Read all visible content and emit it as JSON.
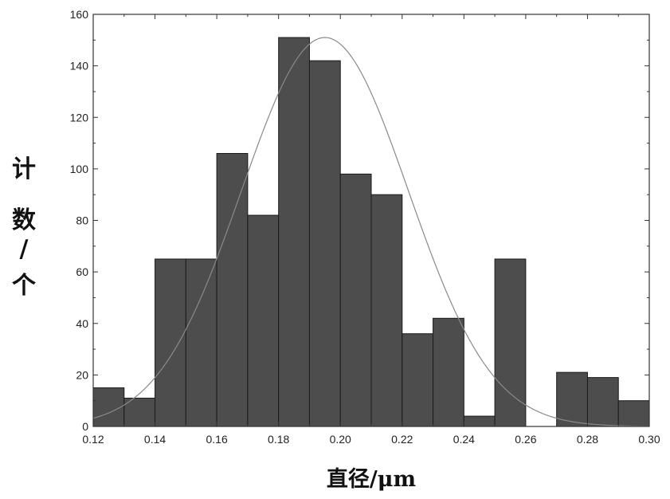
{
  "chart_data": {
    "type": "bar",
    "bin_width": 0.01,
    "bin_starts": [
      0.12,
      0.13,
      0.14,
      0.15,
      0.16,
      0.17,
      0.18,
      0.19,
      0.2,
      0.21,
      0.22,
      0.23,
      0.24,
      0.25,
      0.26,
      0.27,
      0.28,
      0.29
    ],
    "values": [
      15,
      11,
      65,
      65,
      106,
      82,
      151,
      142,
      98,
      90,
      36,
      42,
      4,
      65,
      0,
      21,
      19,
      10
    ],
    "fit_curve": {
      "type": "gaussian",
      "peak": 151,
      "center": 0.195,
      "sigma": 0.027
    },
    "xlabel": "直径/μm",
    "ylabel": "计数/个",
    "xlim": [
      0.12,
      0.3
    ],
    "ylim": [
      0,
      160
    ],
    "x_ticks": [
      "0.12",
      "0.14",
      "0.16",
      "0.18",
      "0.20",
      "0.22",
      "0.24",
      "0.26",
      "0.28",
      "0.30"
    ],
    "y_ticks": [
      "0",
      "20",
      "40",
      "60",
      "80",
      "100",
      "120",
      "140",
      "160"
    ],
    "grid": false,
    "colors": {
      "bar_fill": "#4d4d4d",
      "bar_edge": "#1a1a1a",
      "curve": "#8a8a8a",
      "axis": "#333333"
    }
  }
}
